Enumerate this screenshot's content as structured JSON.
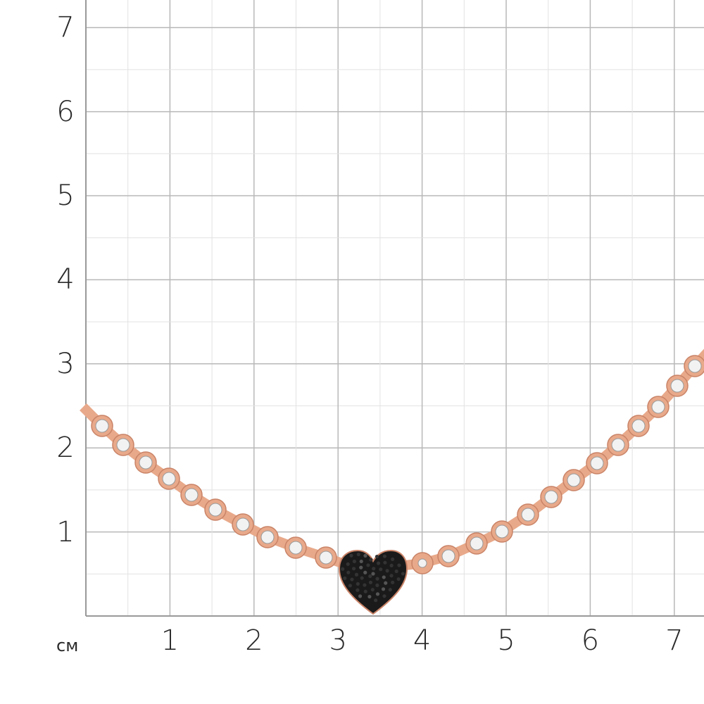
{
  "scale": {
    "unit": "см",
    "x_ticks": [
      "1",
      "2",
      "3",
      "4",
      "5",
      "6",
      "7"
    ],
    "y_ticks": [
      "1",
      "2",
      "3",
      "4",
      "5",
      "6",
      "7"
    ],
    "grid": {
      "major_step_cm": 1,
      "minor_step_cm": 0.5,
      "major_color": "#b8b8b8",
      "minor_color": "#e2e2e2"
    }
  },
  "product": {
    "type": "necklace",
    "metal_color": "#e8a98a",
    "stone_color": "#f2f2f2",
    "pendant": "heart",
    "pendant_color": "#1a1a1a"
  }
}
